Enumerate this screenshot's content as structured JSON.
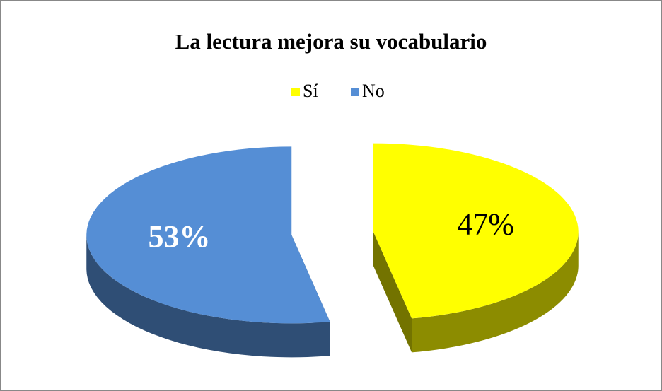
{
  "chart_data": {
    "type": "pie",
    "title": "La lectura mejora su vocabulario",
    "categories": [
      "Sí",
      "No"
    ],
    "values": [
      47,
      53
    ],
    "value_labels": [
      "47%",
      "53%"
    ],
    "colors": [
      "#ffff00",
      "#558ed5"
    ],
    "legend": "top"
  }
}
